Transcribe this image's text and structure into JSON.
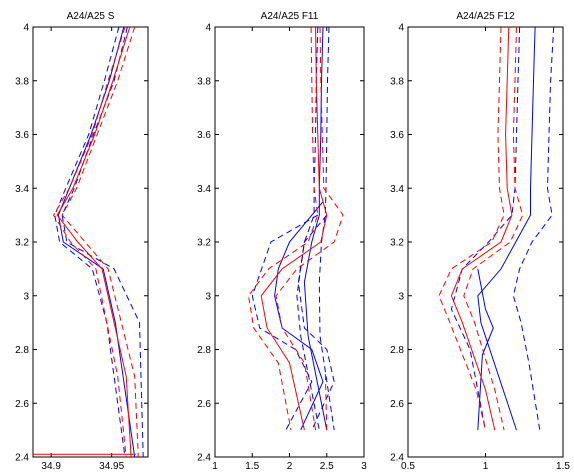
{
  "chart_data": [
    {
      "type": "line",
      "title": "A24/A25 S",
      "xlim": [
        34.885,
        34.98
      ],
      "ylim": [
        2.4,
        4.0
      ],
      "xticks": [
        "34.9",
        "34.95"
      ],
      "yticks": [
        "2.4",
        "2.6",
        "2.8",
        "3",
        "3.2",
        "3.4",
        "3.6",
        "3.8",
        "4"
      ],
      "series": [
        {
          "color": "#0000ff",
          "dash": "solid",
          "points": [
            [
              34.96,
              4.0
            ],
            [
              34.948,
              3.8
            ],
            [
              34.933,
              3.6
            ],
            [
              34.915,
              3.4
            ],
            [
              34.906,
              3.3
            ],
            [
              34.91,
              3.2
            ],
            [
              34.943,
              3.1
            ],
            [
              34.953,
              2.9
            ],
            [
              34.969,
              2.4
            ]
          ]
        },
        {
          "color": "#0000ff",
          "dash": "dashed",
          "points": [
            [
              34.963,
              4.0
            ],
            [
              34.952,
              3.8
            ],
            [
              34.935,
              3.6
            ],
            [
              34.919,
              3.4
            ],
            [
              34.909,
              3.3
            ],
            [
              34.913,
              3.2
            ],
            [
              34.952,
              3.1
            ],
            [
              34.973,
              2.9
            ],
            [
              34.976,
              2.4
            ]
          ]
        },
        {
          "color": "#0000ff",
          "dash": "dashed",
          "points": [
            [
              34.956,
              4.0
            ],
            [
              34.944,
              3.8
            ],
            [
              34.931,
              3.6
            ],
            [
              34.912,
              3.4
            ],
            [
              34.903,
              3.3
            ],
            [
              34.907,
              3.2
            ],
            [
              34.934,
              3.1
            ],
            [
              34.946,
              2.9
            ],
            [
              34.961,
              2.4
            ]
          ]
        },
        {
          "color": "#ff0000",
          "dash": "solid",
          "points": [
            [
              34.965,
              4.0
            ],
            [
              34.951,
              3.8
            ],
            [
              34.936,
              3.6
            ],
            [
              34.918,
              3.4
            ],
            [
              34.905,
              3.3
            ],
            [
              34.922,
              3.2
            ],
            [
              34.942,
              3.1
            ],
            [
              34.962,
              2.7
            ],
            [
              34.966,
              2.4
            ]
          ]
        },
        {
          "color": "#ff0000",
          "dash": "dashed",
          "points": [
            [
              34.969,
              4.0
            ],
            [
              34.955,
              3.8
            ],
            [
              34.938,
              3.6
            ],
            [
              34.921,
              3.4
            ],
            [
              34.909,
              3.3
            ],
            [
              34.928,
              3.2
            ],
            [
              34.947,
              3.1
            ],
            [
              34.969,
              2.7
            ],
            [
              34.972,
              2.4
            ]
          ]
        },
        {
          "color": "#ff0000",
          "dash": "dashed",
          "points": [
            [
              34.961,
              4.0
            ],
            [
              34.947,
              3.8
            ],
            [
              34.934,
              3.6
            ],
            [
              34.915,
              3.4
            ],
            [
              34.902,
              3.3
            ],
            [
              34.916,
              3.2
            ],
            [
              34.937,
              3.1
            ],
            [
              34.955,
              2.7
            ],
            [
              34.962,
              2.4
            ]
          ]
        },
        {
          "color": "#ff0000",
          "dash": "solid",
          "points": [
            [
              34.885,
              2.41
            ],
            [
              34.97,
              2.41
            ]
          ]
        }
      ]
    },
    {
      "type": "line",
      "title": "A24/A25 F11",
      "xlim": [
        1,
        3
      ],
      "ylim": [
        2.4,
        4.0
      ],
      "xticks": [
        "1",
        "1.5",
        "2",
        "2.5",
        "3"
      ],
      "yticks": [
        "2.4",
        "2.6",
        "2.8",
        "3",
        "3.2",
        "3.4",
        "3.6",
        "3.8",
        "4"
      ],
      "series": [
        {
          "color": "#0000ff",
          "dash": "solid",
          "points": [
            [
              2.45,
              4.0
            ],
            [
              2.43,
              3.8
            ],
            [
              2.42,
              3.6
            ],
            [
              2.4,
              3.4
            ],
            [
              2.4,
              3.3
            ],
            [
              2.3,
              3.2
            ],
            [
              2.2,
              3.05
            ],
            [
              2.25,
              2.85
            ],
            [
              2.5,
              2.5
            ]
          ]
        },
        {
          "color": "#0000ff",
          "dash": "dashed",
          "points": [
            [
              2.53,
              4.0
            ],
            [
              2.51,
              3.8
            ],
            [
              2.5,
              3.6
            ],
            [
              2.49,
              3.4
            ],
            [
              2.48,
              3.3
            ],
            [
              2.43,
              3.2
            ],
            [
              2.4,
              3.05
            ],
            [
              2.41,
              2.85
            ],
            [
              2.6,
              2.5
            ]
          ]
        },
        {
          "color": "#0000ff",
          "dash": "dashed",
          "points": [
            [
              2.38,
              4.0
            ],
            [
              2.36,
              3.8
            ],
            [
              2.35,
              3.6
            ],
            [
              2.33,
              3.4
            ],
            [
              2.33,
              3.3
            ],
            [
              2.2,
              3.2
            ],
            [
              2.1,
              3.0
            ],
            [
              2.15,
              2.85
            ],
            [
              2.4,
              2.5
            ]
          ]
        },
        {
          "color": "#0000ff",
          "dash": "solid",
          "points": [
            [
              2.45,
              3.35
            ],
            [
              2.0,
              3.2
            ],
            [
              1.85,
              3.1
            ],
            [
              1.8,
              3.0
            ],
            [
              1.9,
              2.88
            ],
            [
              2.3,
              2.8
            ],
            [
              2.45,
              2.68
            ],
            [
              2.15,
              2.5
            ]
          ]
        },
        {
          "color": "#0000ff",
          "dash": "dashed",
          "points": [
            [
              2.38,
              3.3
            ],
            [
              1.75,
              3.2
            ],
            [
              1.5,
              3.0
            ],
            [
              1.6,
              2.88
            ],
            [
              2.08,
              2.8
            ],
            [
              2.3,
              2.68
            ],
            [
              1.95,
              2.5
            ]
          ]
        },
        {
          "color": "#0000ff",
          "dash": "dashed",
          "points": [
            [
              2.5,
              3.3
            ],
            [
              2.2,
              3.2
            ],
            [
              2.12,
              3.05
            ],
            [
              2.2,
              2.88
            ],
            [
              2.5,
              2.8
            ],
            [
              2.6,
              2.68
            ],
            [
              2.3,
              2.5
            ]
          ]
        },
        {
          "color": "#ff0000",
          "dash": "solid",
          "points": [
            [
              2.35,
              4.0
            ],
            [
              2.36,
              3.8
            ],
            [
              2.38,
              3.6
            ],
            [
              2.4,
              3.4
            ],
            [
              2.5,
              3.3
            ],
            [
              2.42,
              3.2
            ],
            [
              1.9,
              3.1
            ],
            [
              1.62,
              3.0
            ],
            [
              1.7,
              2.88
            ],
            [
              2.0,
              2.75
            ],
            [
              2.2,
              2.5
            ]
          ]
        },
        {
          "color": "#ff0000",
          "dash": "dashed",
          "points": [
            [
              2.41,
              4.0
            ],
            [
              2.42,
              3.8
            ],
            [
              2.44,
              3.6
            ],
            [
              2.46,
              3.4
            ],
            [
              2.72,
              3.3
            ],
            [
              2.6,
              3.2
            ],
            [
              2.1,
              3.1
            ],
            [
              1.82,
              3.0
            ],
            [
              1.9,
              2.88
            ],
            [
              2.2,
              2.75
            ],
            [
              2.35,
              2.5
            ]
          ]
        },
        {
          "color": "#ff0000",
          "dash": "dashed",
          "points": [
            [
              2.29,
              4.0
            ],
            [
              2.3,
              3.8
            ],
            [
              2.31,
              3.6
            ],
            [
              2.33,
              3.4
            ],
            [
              2.38,
              3.3
            ],
            [
              2.25,
              3.2
            ],
            [
              1.72,
              3.1
            ],
            [
              1.45,
              3.0
            ],
            [
              1.52,
              2.88
            ],
            [
              1.85,
              2.75
            ],
            [
              2.02,
              2.5
            ]
          ]
        },
        {
          "color": "#ff0000",
          "dash": "dashed",
          "points": [
            [
              2.5,
              2.5
            ],
            [
              2.48,
              2.72
            ]
          ]
        }
      ]
    },
    {
      "type": "line",
      "title": "A24/A25 F12",
      "xlim": [
        0.5,
        1.5
      ],
      "ylim": [
        2.4,
        4.0
      ],
      "xticks": [
        "0.5",
        "1",
        "1.5"
      ],
      "yticks": [
        "2.4",
        "2.6",
        "2.8",
        "3",
        "3.2",
        "3.4",
        "3.6",
        "3.8",
        "4"
      ],
      "series": [
        {
          "color": "#0000ff",
          "dash": "solid",
          "points": [
            [
              1.32,
              4.0
            ],
            [
              1.31,
              3.8
            ],
            [
              1.3,
              3.6
            ],
            [
              1.29,
              3.4
            ],
            [
              1.29,
              3.3
            ],
            [
              1.1,
              3.1
            ],
            [
              0.95,
              3.0
            ],
            [
              0.97,
              2.9
            ],
            [
              1.2,
              2.5
            ]
          ]
        },
        {
          "color": "#0000ff",
          "dash": "dashed",
          "points": [
            [
              1.44,
              4.0
            ],
            [
              1.42,
              3.8
            ],
            [
              1.41,
              3.6
            ],
            [
              1.4,
              3.4
            ],
            [
              1.43,
              3.3
            ],
            [
              1.3,
              3.2
            ],
            [
              1.22,
              3.1
            ],
            [
              1.18,
              3.0
            ],
            [
              1.23,
              2.9
            ],
            [
              1.28,
              2.75
            ],
            [
              1.35,
              2.5
            ]
          ]
        },
        {
          "color": "#0000ff",
          "dash": "dashed",
          "points": [
            [
              1.22,
              4.0
            ],
            [
              1.21,
              3.8
            ],
            [
              1.2,
              3.6
            ],
            [
              1.19,
              3.4
            ],
            [
              1.17,
              3.3
            ],
            [
              1.02,
              3.2
            ],
            [
              0.85,
              3.1
            ],
            [
              0.78,
              2.95
            ],
            [
              0.9,
              2.8
            ],
            [
              1.0,
              2.5
            ]
          ]
        },
        {
          "color": "#0000ff",
          "dash": "solid",
          "points": [
            [
              0.95,
              3.1
            ],
            [
              1.0,
              2.95
            ],
            [
              1.05,
              2.88
            ],
            [
              0.98,
              2.78
            ],
            [
              0.95,
              2.5
            ]
          ]
        },
        {
          "color": "#ff0000",
          "dash": "solid",
          "points": [
            [
              1.15,
              4.0
            ],
            [
              1.14,
              3.8
            ],
            [
              1.13,
              3.6
            ],
            [
              1.14,
              3.4
            ],
            [
              1.17,
              3.3
            ],
            [
              1.1,
              3.2
            ],
            [
              0.85,
              3.1
            ],
            [
              0.78,
              3.0
            ],
            [
              0.85,
              2.9
            ],
            [
              1.0,
              2.65
            ],
            [
              1.06,
              2.5
            ]
          ]
        },
        {
          "color": "#ff0000",
          "dash": "dashed",
          "points": [
            [
              1.2,
              4.0
            ],
            [
              1.19,
              3.8
            ],
            [
              1.18,
              3.6
            ],
            [
              1.19,
              3.4
            ],
            [
              1.24,
              3.3
            ],
            [
              1.16,
              3.2
            ],
            [
              0.92,
              3.1
            ],
            [
              0.86,
              3.0
            ],
            [
              0.93,
              2.9
            ],
            [
              1.06,
              2.65
            ],
            [
              1.12,
              2.5
            ]
          ]
        },
        {
          "color": "#ff0000",
          "dash": "dashed",
          "points": [
            [
              1.1,
              4.0
            ],
            [
              1.09,
              3.8
            ],
            [
              1.08,
              3.6
            ],
            [
              1.09,
              3.4
            ],
            [
              1.12,
              3.3
            ],
            [
              1.04,
              3.2
            ],
            [
              0.78,
              3.1
            ],
            [
              0.7,
              3.0
            ],
            [
              0.77,
              2.9
            ],
            [
              0.94,
              2.65
            ],
            [
              1.0,
              2.5
            ]
          ]
        }
      ]
    }
  ]
}
